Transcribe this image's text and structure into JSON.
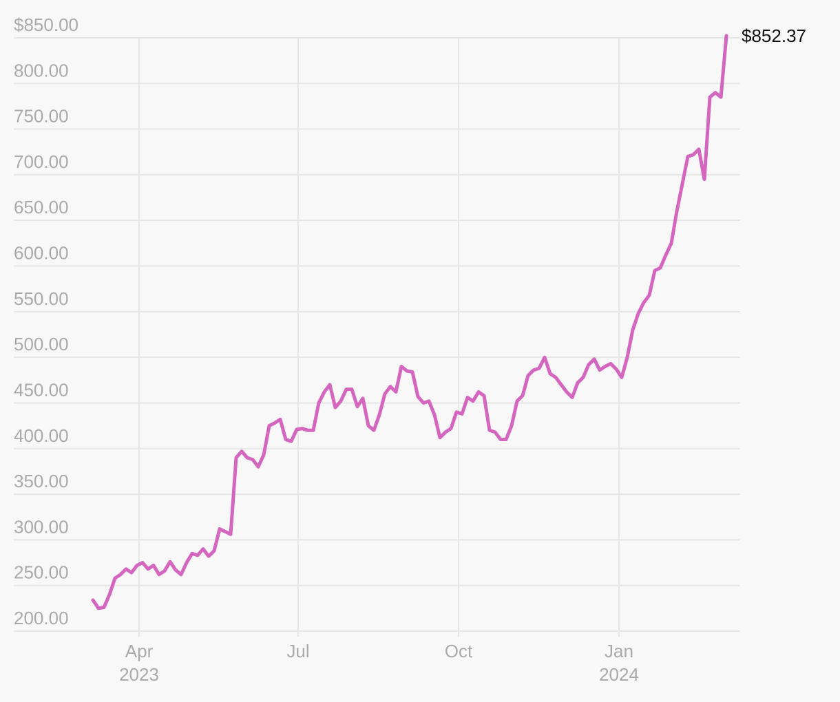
{
  "chart_data": {
    "type": "line",
    "series": [
      {
        "color": "#d466c0",
        "values": [
          234,
          225,
          226,
          240,
          258,
          262,
          268,
          264,
          272,
          275,
          268,
          272,
          262,
          266,
          276,
          267,
          262,
          275,
          285,
          283,
          290,
          282,
          288,
          312,
          309,
          306,
          390,
          397,
          390,
          388,
          380,
          393,
          425,
          428,
          432,
          410,
          408,
          421,
          422,
          420,
          420,
          450,
          462,
          470,
          445,
          452,
          465,
          465,
          446,
          455,
          425,
          420,
          437,
          460,
          468,
          462,
          490,
          485,
          484,
          457,
          450,
          452,
          437,
          412,
          418,
          422,
          440,
          438,
          456,
          452,
          462,
          458,
          420,
          418,
          410,
          410,
          425,
          452,
          458,
          480,
          486,
          488,
          500,
          482,
          478,
          470,
          462,
          456,
          472,
          478,
          492,
          498,
          486,
          490,
          493,
          487,
          478,
          500,
          530,
          548,
          560,
          568,
          595,
          598,
          612,
          625,
          660,
          690,
          720,
          722,
          728,
          695,
          785,
          790,
          785,
          852.37
        ],
        "value_labels": [
          null,
          null,
          null,
          null,
          null,
          null,
          null,
          null,
          null,
          null,
          null,
          null,
          null,
          null,
          null,
          null,
          null,
          null,
          null,
          null,
          null,
          null,
          null,
          null,
          null,
          null,
          null,
          null,
          null,
          null,
          null,
          null,
          null,
          null,
          null,
          null,
          null,
          null,
          null,
          null,
          null,
          null,
          null,
          null,
          null,
          null,
          null,
          null,
          null,
          null,
          null,
          null,
          null,
          null,
          null,
          null,
          null,
          null,
          null,
          null,
          null,
          null,
          null,
          null,
          null,
          null,
          null,
          null,
          null,
          null,
          null,
          null,
          null,
          null,
          null,
          null,
          null,
          null,
          null,
          null,
          null,
          null,
          null,
          null,
          null,
          null,
          null,
          null,
          null,
          null,
          null,
          null,
          null,
          null,
          null,
          null,
          null,
          null,
          null,
          null,
          null,
          null,
          null,
          null,
          null,
          null,
          null,
          null,
          null,
          null,
          null,
          null,
          null,
          null,
          null,
          "$852.37"
        ]
      }
    ],
    "xlim": [
      -14.375,
      117.5
    ],
    "xticks": [
      {
        "value": 8.375,
        "label": "Apr",
        "year": "2023"
      },
      {
        "value": 37.25,
        "label": "Jul"
      },
      {
        "value": 66.375,
        "label": "Oct"
      },
      {
        "value": 95.5,
        "label": "Jan",
        "year": "2024"
      }
    ],
    "ylim": [
      200,
      850
    ],
    "yticks": [
      {
        "value": 200,
        "label": "200.00"
      },
      {
        "value": 250,
        "label": "250.00"
      },
      {
        "value": 300,
        "label": "300.00"
      },
      {
        "value": 350,
        "label": "350.00"
      },
      {
        "value": 400,
        "label": "400.00"
      },
      {
        "value": 450,
        "label": "450.00"
      },
      {
        "value": 500,
        "label": "500.00"
      },
      {
        "value": 550,
        "label": "550.00"
      },
      {
        "value": 600,
        "label": "600.00"
      },
      {
        "value": 650,
        "label": "650.00"
      },
      {
        "value": 700,
        "label": "700.00"
      },
      {
        "value": 750,
        "label": "750.00"
      },
      {
        "value": 800,
        "label": "800.00"
      },
      {
        "value": 850,
        "label": "$850.00"
      }
    ],
    "grid": true
  }
}
